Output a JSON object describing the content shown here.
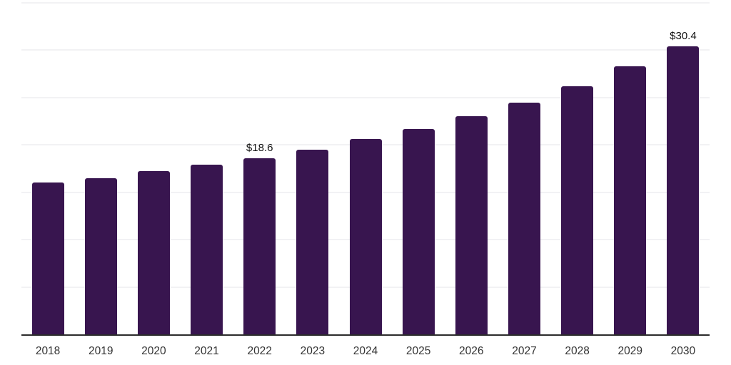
{
  "chart_data": {
    "type": "bar",
    "title": "",
    "xlabel": "",
    "ylabel": "",
    "categories": [
      "2018",
      "2019",
      "2020",
      "2021",
      "2022",
      "2023",
      "2024",
      "2025",
      "2026",
      "2027",
      "2028",
      "2029",
      "2030"
    ],
    "values": [
      16.0,
      16.5,
      17.2,
      17.9,
      18.6,
      19.5,
      20.6,
      21.7,
      23.0,
      24.5,
      26.2,
      28.3,
      30.4
    ],
    "data_labels": {
      "2022": "$18.6",
      "2030": "$30.4"
    },
    "ylim": [
      0,
      35
    ],
    "grid": {
      "visible": true,
      "step": 5,
      "y_tick_labels_visible": false
    },
    "legend": {
      "visible": false
    },
    "colors": {
      "bar_fill": "#38154F",
      "axis_line": "#2b2b2b",
      "gridline": "#f2f2f4",
      "data_label_text": "#111111",
      "x_tick_text": "#333333",
      "background": "#ffffff"
    }
  }
}
